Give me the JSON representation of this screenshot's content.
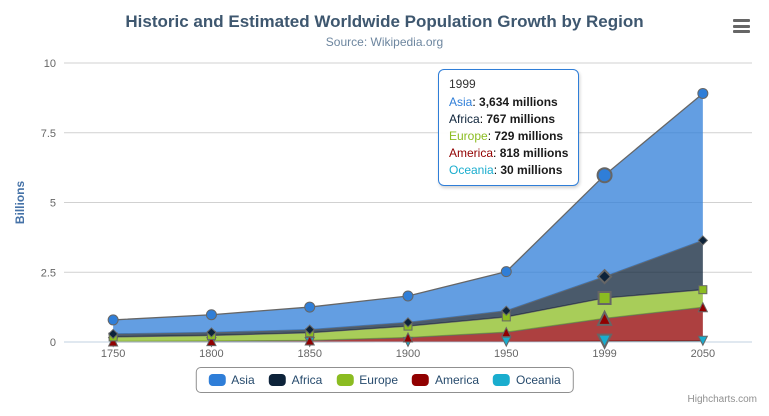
{
  "chart_data": {
    "type": "area",
    "stacking": "normal",
    "title": "Historic and Estimated Worldwide Population Growth by Region",
    "subtitle": "Source: Wikipedia.org",
    "categories": [
      "1750",
      "1800",
      "1850",
      "1900",
      "1950",
      "1999",
      "2050"
    ],
    "xlabel": "",
    "ylabel": "Billions",
    "ylim": [
      0,
      10
    ],
    "yticks": [
      0,
      2.5,
      5,
      7.5,
      10
    ],
    "values_unit": "millions",
    "axis_unit": "billions",
    "grid": "horizontal",
    "legend_position": "bottom",
    "fill_opacity": 0.75,
    "line_color": "#666666",
    "hover_category_index": 5,
    "series": [
      {
        "name": "Asia",
        "color": "#2f7ed8",
        "marker": "circle",
        "values": [
          502,
          635,
          809,
          947,
          1402,
          3634,
          5268
        ]
      },
      {
        "name": "Africa",
        "color": "#0d233a",
        "marker": "diamond",
        "values": [
          106,
          107,
          111,
          133,
          221,
          767,
          1766
        ]
      },
      {
        "name": "Europe",
        "color": "#8bbc21",
        "marker": "square",
        "values": [
          163,
          203,
          276,
          408,
          547,
          729,
          628
        ]
      },
      {
        "name": "America",
        "color": "#910000",
        "marker": "triangle",
        "values": [
          18,
          31,
          54,
          156,
          339,
          818,
          1201
        ]
      },
      {
        "name": "Oceania",
        "color": "#1aadce",
        "marker": "triangle-down",
        "values": [
          2,
          2,
          2,
          6,
          13,
          30,
          46
        ]
      }
    ]
  },
  "tooltip": {
    "title": "1999",
    "border_color": "#2f7ed8",
    "rows": [
      {
        "name": "Asia",
        "color": "#2f7ed8",
        "value": "3,634 millions"
      },
      {
        "name": "Africa",
        "color": "#0d233a",
        "value": "767 millions"
      },
      {
        "name": "Europe",
        "color": "#8bbc21",
        "value": "729 millions"
      },
      {
        "name": "America",
        "color": "#910000",
        "value": "818 millions"
      },
      {
        "name": "Oceania",
        "color": "#1aadce",
        "value": "30 millions"
      }
    ]
  },
  "credits": {
    "label": "Highcharts.com"
  },
  "icons": {
    "export_menu": "hamburger-menu-icon"
  },
  "colors": {
    "title_text": "#3E576F",
    "subtitle_text": "#6D869F",
    "axis_label": "#666666",
    "yaxis_title": "#4572A7",
    "legend_text": "#274B6D",
    "legend_border": "#909090",
    "grid_line": "#D1D1D1",
    "xaxis_line": "#C0D0E0",
    "credits_text": "#909090",
    "background": "#FFFFFF"
  }
}
